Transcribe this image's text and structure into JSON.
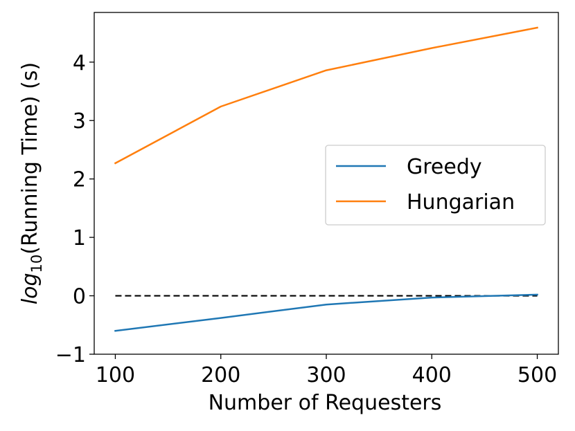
{
  "chart_data": {
    "type": "line",
    "xlabel": "Number of Requesters",
    "ylabel": {
      "prefix": "log",
      "subscript": "10",
      "suffix": "(Running Time) (s)"
    },
    "x": [
      100,
      200,
      300,
      400,
      500
    ],
    "xlim": [
      80,
      520
    ],
    "ylim": [
      -1,
      4.85
    ],
    "xticks": [
      100,
      200,
      300,
      400,
      500
    ],
    "yticks": [
      -1,
      0,
      1,
      2,
      3,
      4
    ],
    "ytick_labels": [
      "−1",
      "0",
      "1",
      "2",
      "3",
      "4"
    ],
    "series": [
      {
        "name": "Greedy",
        "color": "#1f77b4",
        "values": [
          -0.6,
          -0.38,
          -0.15,
          -0.03,
          0.02
        ]
      },
      {
        "name": "Hungarian",
        "color": "#ff7f0e",
        "values": [
          2.27,
          3.24,
          3.86,
          4.24,
          4.59
        ]
      }
    ],
    "reference_line": {
      "y": 0,
      "style": "dashed",
      "color": "#000000"
    },
    "legend": {
      "placement": "center-right"
    },
    "grid": false
  }
}
